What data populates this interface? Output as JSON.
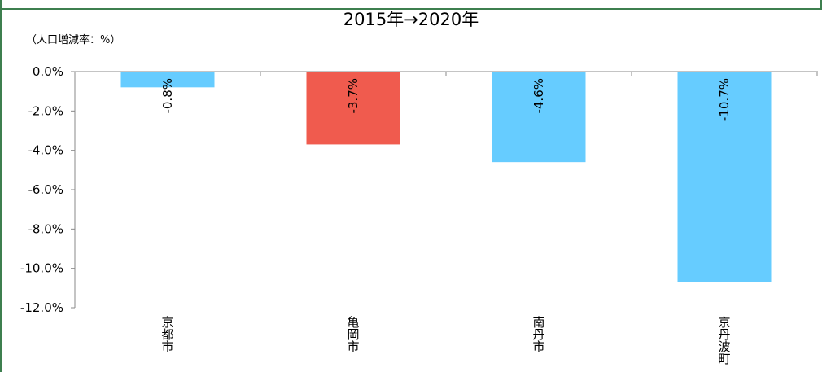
{
  "chart_data": {
    "type": "bar",
    "title": "2015年→2020年",
    "unit_label": "（人口増減率：%）",
    "categories": [
      "京都市",
      "亀岡市",
      "南丹市",
      "京丹波町"
    ],
    "values": [
      -0.8,
      -3.7,
      -4.6,
      -10.7
    ],
    "data_labels": [
      "-0.8%",
      "-3.7%",
      "-4.6%",
      "-10.7%"
    ],
    "bar_colors": [
      "#66ccff",
      "#f05b4e",
      "#66ccff",
      "#66ccff"
    ],
    "ylim": [
      -12.0,
      0.0
    ],
    "yticks": [
      0.0,
      -2.0,
      -4.0,
      -6.0,
      -8.0,
      -10.0,
      -12.0
    ],
    "ytick_labels": [
      "0.0%",
      "-2.0%",
      "-4.0%",
      "-6.0%",
      "-8.0%",
      "-10.0%",
      "-12.0%"
    ],
    "grid": false,
    "legend": "none"
  }
}
